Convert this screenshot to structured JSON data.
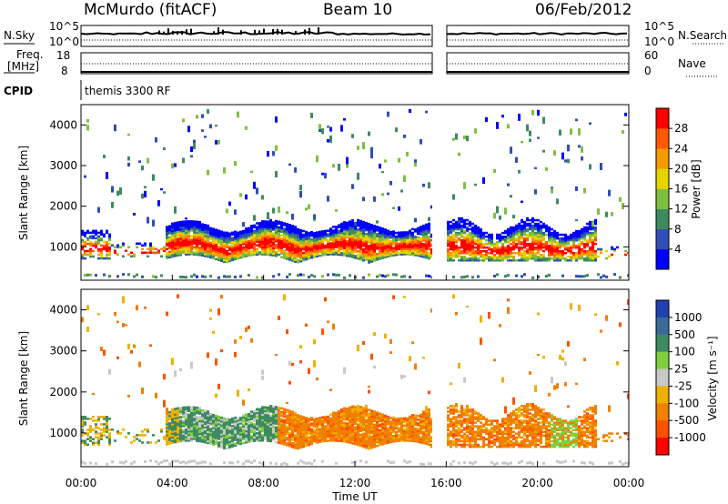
{
  "header": {
    "station": "McMurdo (fitACF)",
    "beam": "Beam 10",
    "date": "06/Feb/2012"
  },
  "top_panels": {
    "nsky_label": "N.Sky",
    "nsearch_label": "N.Search",
    "nsky_ticks": [
      "10^5",
      "10^0"
    ],
    "nsearch_ticks": [
      "10^5",
      "10^0"
    ],
    "freq_label_1": "Freq.",
    "freq_label_2": "[MHz]",
    "freq_ticks": [
      "18",
      "8"
    ],
    "nave_label": "Nave",
    "nave_ticks": [
      "60",
      "0"
    ],
    "cpid_label": "CPID",
    "cpid_text": "themis 3300 RF",
    "line_color": "#000000"
  },
  "chart_data": [
    {
      "type": "heatmap",
      "title": "",
      "xlabel": "Time UT",
      "ylabel": "Slant Range [km]",
      "x_ticks": [
        "00:00",
        "04:00",
        "08:00",
        "12:00",
        "16:00",
        "20:00",
        "00:00"
      ],
      "xlim_hours": [
        0,
        24
      ],
      "ylim": [
        180,
        4500
      ],
      "y_ticks": [
        1000,
        2000,
        3000,
        4000
      ],
      "data_gap_hours": [
        15.3,
        16.0
      ],
      "colorbar": {
        "label": "Power [dB]",
        "ticks": [
          "4",
          "8",
          "12",
          "16",
          "20",
          "24",
          "28"
        ],
        "range": [
          0,
          30
        ],
        "colors": [
          "#0000ff",
          "#2f4fb4",
          "#3e8a5e",
          "#7fbf3f",
          "#e6d400",
          "#f59b00",
          "#ff5a00",
          "#ff0000"
        ]
      },
      "main_echo_band_km": [
        650,
        1500
      ],
      "far_echo_band_km": [
        2300,
        2800
      ]
    },
    {
      "type": "heatmap",
      "title": "",
      "xlabel": "Time UT",
      "ylabel": "Slant Range [km]",
      "x_ticks": [
        "00:00",
        "04:00",
        "08:00",
        "12:00",
        "16:00",
        "20:00",
        "00:00"
      ],
      "xlim_hours": [
        0,
        24
      ],
      "ylim": [
        180,
        4500
      ],
      "y_ticks": [
        1000,
        2000,
        3000,
        4000
      ],
      "data_gap_hours": [
        15.3,
        16.0
      ],
      "colorbar": {
        "label": "Velocity [m s⁻¹]",
        "ticks": [
          "1000",
          "500",
          "100",
          "25",
          "-25",
          "-100",
          "-500",
          "-1000"
        ],
        "colors": [
          "#2040b0",
          "#3a6a98",
          "#3f8a60",
          "#7fcf3f",
          "#c8c8c8",
          "#f0b000",
          "#f08000",
          "#ff5000",
          "#ff0000"
        ]
      },
      "ground_scatter_color": "#c0c0c0"
    }
  ]
}
